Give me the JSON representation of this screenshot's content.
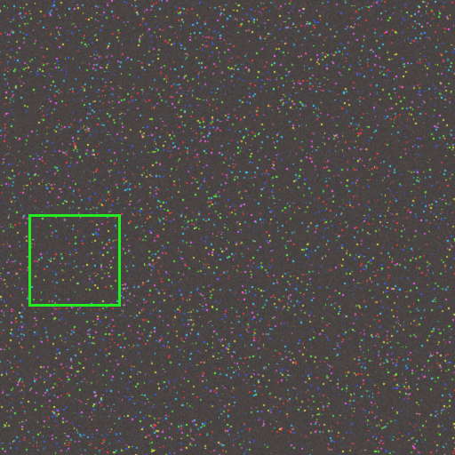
{
  "image": {
    "background_color": "#4a4544",
    "speckle_colors": [
      "#ff3b3b",
      "#3b5bff",
      "#5cff3b",
      "#e0e040",
      "#3bd0ff",
      "#ff5cff"
    ]
  },
  "annotation": {
    "shape": "rectangle",
    "border_color": "#22ee22",
    "fill": "none"
  }
}
